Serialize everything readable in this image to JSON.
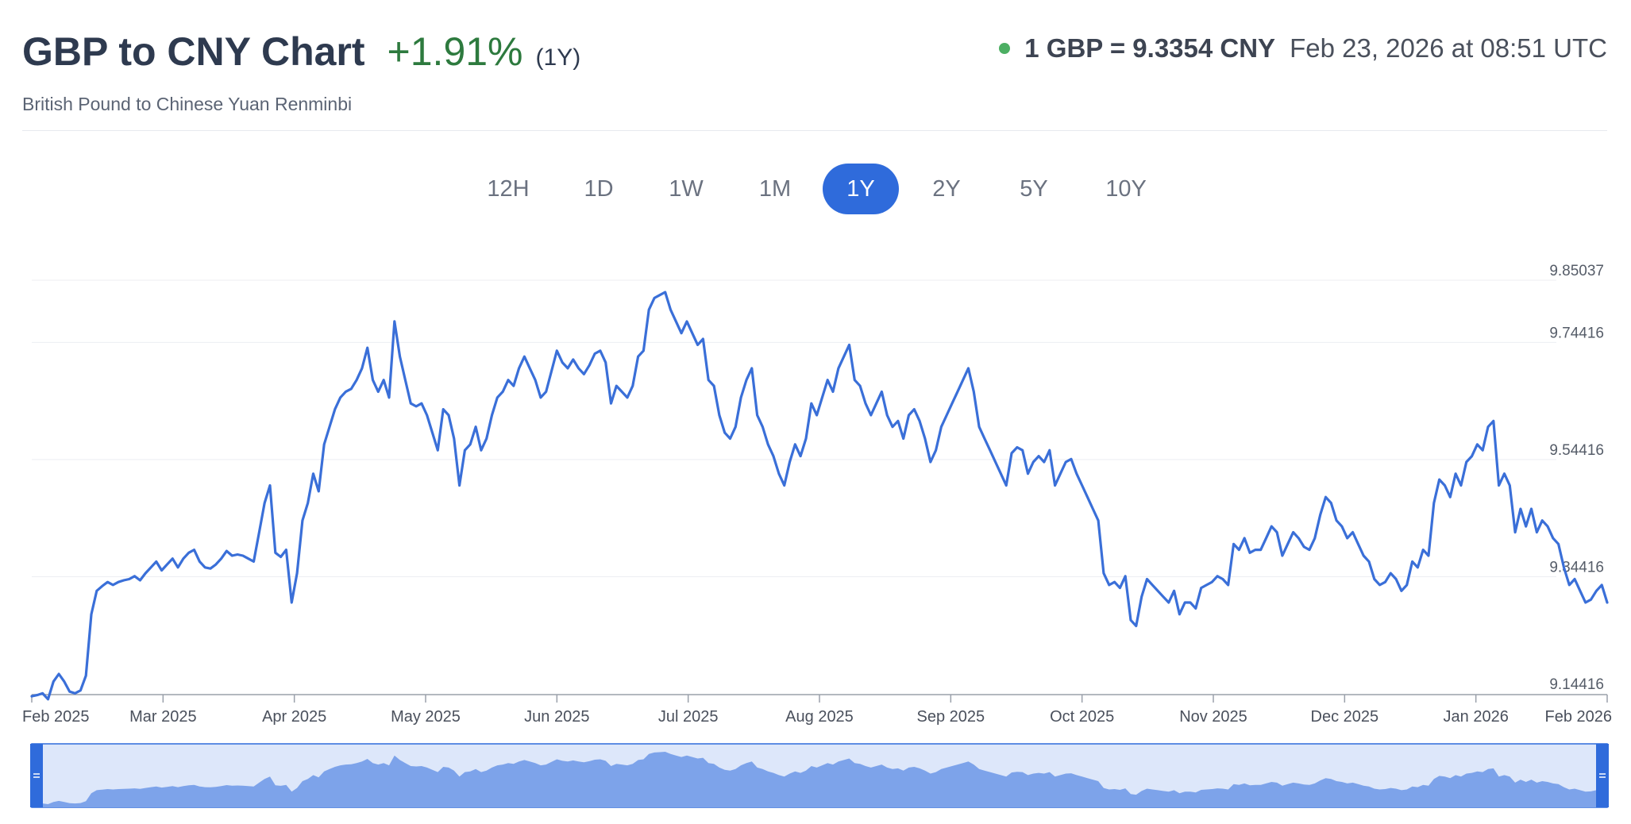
{
  "header": {
    "title": "GBP to CNY Chart",
    "change": "+1.91%",
    "period": "(1Y)",
    "subtitle": "British Pound to Chinese Yuan Renminbi",
    "rate": "1 GBP = 9.3354 CNY",
    "timestamp": "Feb 23, 2026 at 08:51 UTC"
  },
  "tabs": [
    {
      "label": "12H",
      "active": false
    },
    {
      "label": "1D",
      "active": false
    },
    {
      "label": "1W",
      "active": false
    },
    {
      "label": "1M",
      "active": false
    },
    {
      "label": "1Y",
      "active": true
    },
    {
      "label": "2Y",
      "active": false
    },
    {
      "label": "5Y",
      "active": false
    },
    {
      "label": "10Y",
      "active": false
    }
  ],
  "colors": {
    "line": "#3a6fd8",
    "navigator_fill": "#7da3ea",
    "navigator_bg": "#dde7fa",
    "accent": "#2f6bdb",
    "positive": "#2d7a3e",
    "live_dot": "#4caf63"
  },
  "chart_data": {
    "type": "line",
    "series": [
      {
        "values": [
          9.14,
          9.142,
          9.145,
          9.135,
          9.165,
          9.178,
          9.165,
          9.148,
          9.145,
          9.15,
          9.175,
          9.28,
          9.32,
          9.328,
          9.335,
          9.33,
          9.335,
          9.338,
          9.34,
          9.345,
          9.338,
          9.35,
          9.36,
          9.37,
          9.355,
          9.365,
          9.375,
          9.36,
          9.375,
          9.385,
          9.39,
          9.37,
          9.36,
          9.358,
          9.365,
          9.375,
          9.388,
          9.38,
          9.382,
          9.38,
          9.375,
          9.37,
          9.42,
          9.47,
          9.5,
          9.385,
          9.378,
          9.39,
          9.3,
          9.35,
          9.44,
          9.47,
          9.52,
          9.49,
          9.57,
          9.6,
          9.63,
          9.65,
          9.66,
          9.665,
          9.68,
          9.7,
          9.735,
          9.68,
          9.66,
          9.68,
          9.65,
          9.78,
          9.72,
          9.68,
          9.64,
          9.635,
          9.64,
          9.62,
          9.59,
          9.56,
          9.63,
          9.62,
          9.58,
          9.5,
          9.56,
          9.57,
          9.6,
          9.56,
          9.58,
          9.62,
          9.65,
          9.66,
          9.68,
          9.67,
          9.7,
          9.72,
          9.7,
          9.68,
          9.65,
          9.66,
          9.695,
          9.73,
          9.71,
          9.7,
          9.715,
          9.7,
          9.69,
          9.705,
          9.725,
          9.73,
          9.71,
          9.64,
          9.67,
          9.66,
          9.65,
          9.67,
          9.72,
          9.73,
          9.8,
          9.82,
          9.825,
          9.83,
          9.8,
          9.78,
          9.76,
          9.78,
          9.76,
          9.74,
          9.75,
          9.68,
          9.67,
          9.62,
          9.59,
          9.58,
          9.6,
          9.65,
          9.68,
          9.7,
          9.62,
          9.6,
          9.57,
          9.55,
          9.52,
          9.5,
          9.54,
          9.57,
          9.55,
          9.58,
          9.64,
          9.62,
          9.65,
          9.68,
          9.66,
          9.7,
          9.72,
          9.74,
          9.68,
          9.67,
          9.64,
          9.62,
          9.64,
          9.66,
          9.62,
          9.6,
          9.61,
          9.58,
          9.62,
          9.63,
          9.61,
          9.58,
          9.54,
          9.56,
          9.6,
          9.62,
          9.64,
          9.66,
          9.68,
          9.7,
          9.66,
          9.6,
          9.58,
          9.56,
          9.54,
          9.52,
          9.5,
          9.555,
          9.565,
          9.56,
          9.52,
          9.54,
          9.55,
          9.54,
          9.56,
          9.5,
          9.52,
          9.54,
          9.545,
          9.52,
          9.5,
          9.48,
          9.46,
          9.44,
          9.35,
          9.33,
          9.335,
          9.325,
          9.345,
          9.27,
          9.26,
          9.31,
          9.34,
          9.33,
          9.32,
          9.31,
          9.3,
          9.32,
          9.28,
          9.3,
          9.3,
          9.29,
          9.325,
          9.33,
          9.335,
          9.345,
          9.34,
          9.33,
          9.4,
          9.39,
          9.41,
          9.385,
          9.39,
          9.39,
          9.41,
          9.43,
          9.42,
          9.38,
          9.4,
          9.42,
          9.41,
          9.395,
          9.39,
          9.41,
          9.45,
          9.48,
          9.47,
          9.44,
          9.43,
          9.41,
          9.42,
          9.4,
          9.38,
          9.37,
          9.34,
          9.33,
          9.335,
          9.35,
          9.34,
          9.32,
          9.33,
          9.37,
          9.36,
          9.39,
          9.38,
          9.47,
          9.51,
          9.5,
          9.48,
          9.52,
          9.5,
          9.54,
          9.55,
          9.57,
          9.56,
          9.6,
          9.61,
          9.5,
          9.52,
          9.5,
          9.42,
          9.46,
          9.43,
          9.46,
          9.42,
          9.44,
          9.43,
          9.41,
          9.4,
          9.36,
          9.33,
          9.34,
          9.32,
          9.3,
          9.305,
          9.32,
          9.33,
          9.3
        ]
      }
    ],
    "x_start": "Feb 2025",
    "x_end": "Feb 2026",
    "x_ticks": [
      "Feb 2025",
      "Mar 2025",
      "Apr 2025",
      "May 2025",
      "Jun 2025",
      "Jul 2025",
      "Aug 2025",
      "Sep 2025",
      "Oct 2025",
      "Nov 2025",
      "Dec 2025",
      "Jan 2026",
      "Feb 2026"
    ],
    "y_ticks": [
      9.85037,
      9.74416,
      9.54416,
      9.34416,
      9.14416
    ],
    "y_tick_labels": [
      "9.85037",
      "9.74416",
      "9.54416",
      "9.34416",
      "9.14416"
    ],
    "ylim": [
      9.14416,
      9.85037
    ],
    "grid": true,
    "navigator": true
  }
}
